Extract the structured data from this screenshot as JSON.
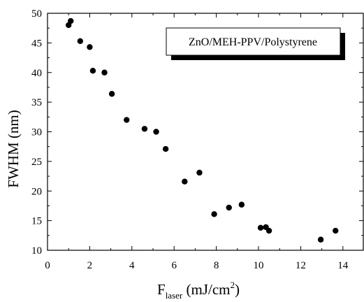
{
  "chart_data": {
    "type": "scatter",
    "title": "",
    "xlabel": {
      "main": "F",
      "subscript": "laser",
      "unit_open": " (mJ/cm",
      "unit_sup": "2",
      "unit_close": ")"
    },
    "ylabel": "FWHM (nm)",
    "xlim": [
      0,
      15
    ],
    "ylim": [
      10,
      50
    ],
    "x_ticks": [
      "0",
      "2",
      "4",
      "6",
      "8",
      "10",
      "12",
      "14"
    ],
    "y_ticks": [
      "10",
      "15",
      "20",
      "25",
      "30",
      "35",
      "40",
      "45",
      "50"
    ],
    "grid": false,
    "legend_position": "top-right",
    "series": [
      {
        "name": "ZnO/MEH-PPV/Polystyrene",
        "color": "#000000",
        "marker": "filled-circle",
        "points": [
          [
            1.0,
            48.0
          ],
          [
            1.1,
            48.7
          ],
          [
            1.55,
            45.3
          ],
          [
            2.0,
            44.3
          ],
          [
            2.15,
            40.3
          ],
          [
            2.7,
            40.0
          ],
          [
            3.05,
            36.4
          ],
          [
            3.75,
            32.0
          ],
          [
            4.6,
            30.5
          ],
          [
            5.15,
            30.0
          ],
          [
            5.6,
            27.1
          ],
          [
            6.5,
            21.6
          ],
          [
            7.2,
            23.1
          ],
          [
            7.9,
            16.1
          ],
          [
            8.6,
            17.2
          ],
          [
            9.2,
            17.7
          ],
          [
            10.1,
            13.8
          ],
          [
            10.35,
            13.9
          ],
          [
            10.5,
            13.3
          ],
          [
            12.95,
            11.8
          ],
          [
            13.65,
            13.3
          ]
        ]
      }
    ]
  }
}
